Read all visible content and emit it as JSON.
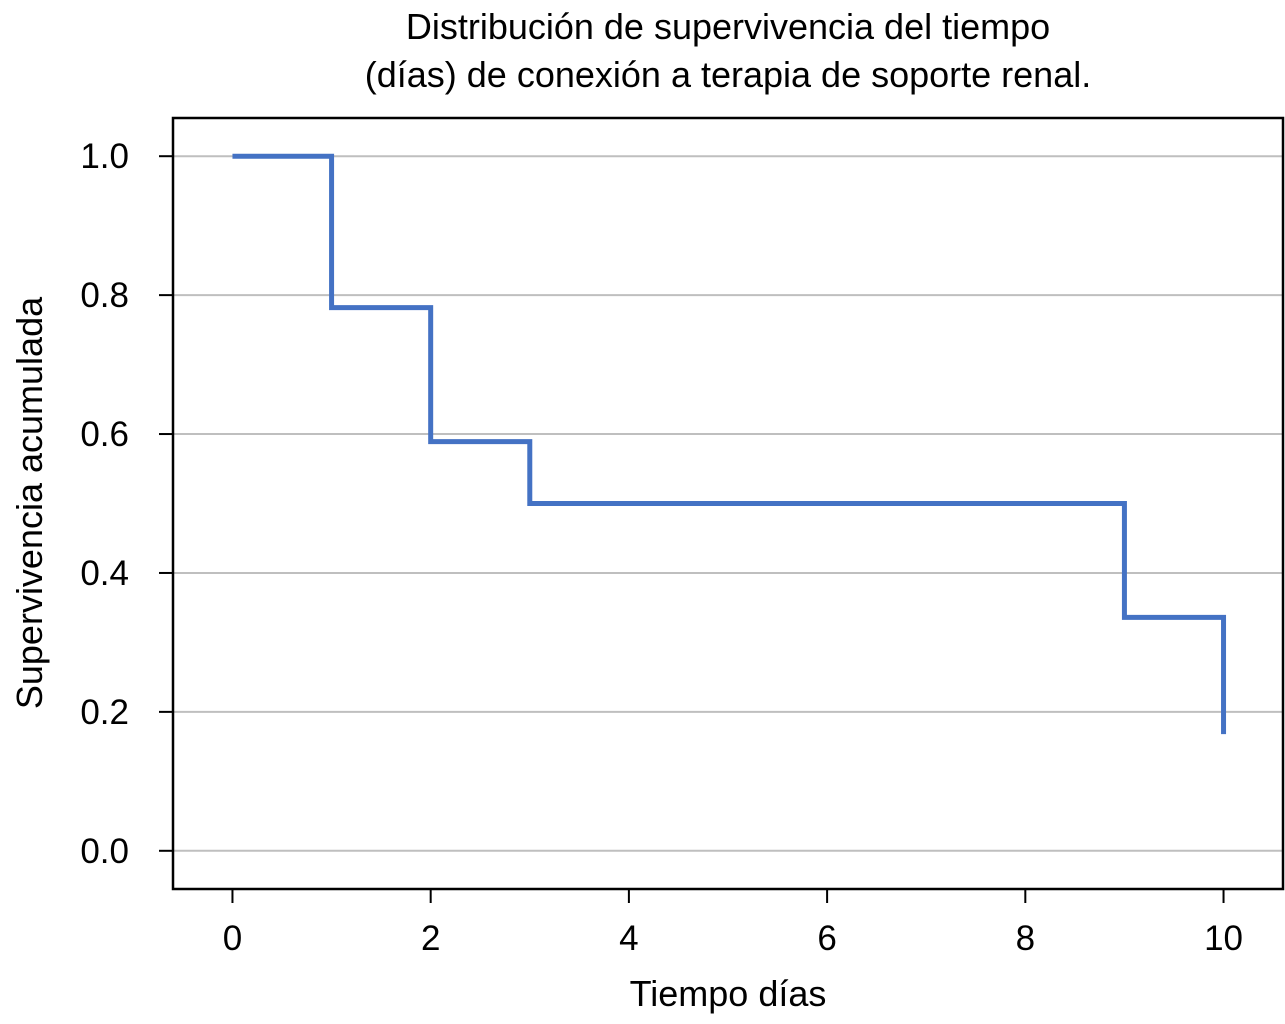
{
  "chart_data": {
    "type": "line",
    "step": true,
    "title_lines": [
      "Distribución de supervivencia del tiempo",
      "(días) de conexión a terapia de soporte renal."
    ],
    "xlabel": "Tiempo días",
    "ylabel": "Supervivencia acumulada",
    "xlim": [
      -0.6,
      10.6
    ],
    "ylim": [
      -0.055,
      1.055
    ],
    "xticks": [
      0,
      2,
      4,
      6,
      8,
      10
    ],
    "xtick_labels": [
      "0",
      "2",
      "4",
      "6",
      "8",
      "10"
    ],
    "yticks": [
      0.0,
      0.2,
      0.4,
      0.6,
      0.8,
      1.0
    ],
    "ytick_labels": [
      "0.0",
      "0.2",
      "0.4",
      "0.6",
      "0.8",
      "1.0"
    ],
    "grid": "horizontal",
    "series": [
      {
        "color": "#4472c4",
        "x": [
          0,
          1,
          2,
          3,
          9,
          10
        ],
        "y": [
          1.0,
          0.782,
          0.589,
          0.5,
          0.336,
          0.168
        ]
      }
    ]
  },
  "colors": {
    "line": "#4472c4",
    "grid": "#bfbfbf",
    "frame": "#000000"
  }
}
